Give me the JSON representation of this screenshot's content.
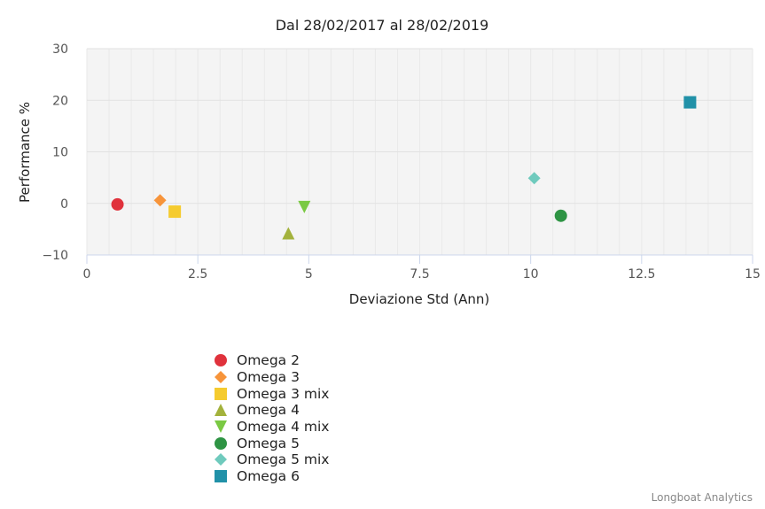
{
  "chart_data": {
    "type": "scatter",
    "title": "Dal 28/02/2017 al 28/02/2019",
    "xlabel": "Deviazione Std (Ann)",
    "ylabel": "Performance %",
    "xlim": [
      0,
      15
    ],
    "ylim": [
      -10,
      30
    ],
    "xticks": [
      "0",
      "2.5",
      "5",
      "7.5",
      "10",
      "12.5",
      "15"
    ],
    "yticks": [
      "30",
      "20",
      "10",
      "0",
      "−10"
    ],
    "grid": true,
    "legend_position": "bottom-left",
    "series": [
      {
        "name": "Omega 2",
        "marker": "circle",
        "color": "#e0323c",
        "x": 0.69,
        "y": -0.2
      },
      {
        "name": "Omega 3",
        "marker": "diamond",
        "color": "#f7943a",
        "x": 1.65,
        "y": 0.6
      },
      {
        "name": "Omega 3 mix",
        "marker": "square",
        "color": "#f5cb2f",
        "x": 1.98,
        "y": -1.6
      },
      {
        "name": "Omega 4",
        "marker": "triangle-up",
        "color": "#a3b23c",
        "x": 4.54,
        "y": -5.8
      },
      {
        "name": "Omega 4 mix",
        "marker": "triangle-down",
        "color": "#7ac943",
        "x": 4.9,
        "y": -0.7
      },
      {
        "name": "Omega 5",
        "marker": "circle",
        "color": "#2e9444",
        "x": 10.68,
        "y": -2.4
      },
      {
        "name": "Omega 5 mix",
        "marker": "diamond",
        "color": "#6fcabd",
        "x": 10.08,
        "y": 4.9
      },
      {
        "name": "Omega 6",
        "marker": "square",
        "color": "#2191a8",
        "x": 13.59,
        "y": 19.6
      }
    ]
  },
  "credits": "Longboat Analytics"
}
